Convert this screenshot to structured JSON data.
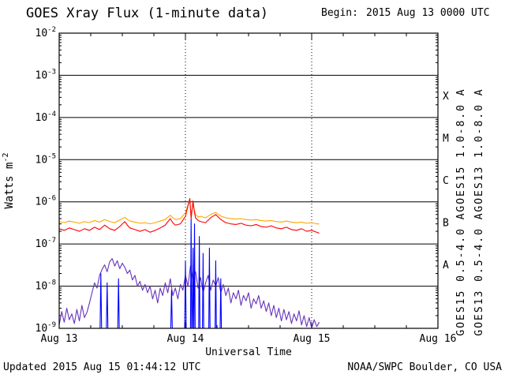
{
  "header": {
    "title": "GOES Xray Flux (1-minute data)",
    "begin_label": "Begin:",
    "begin_value": "2015 Aug 13 0000 UTC"
  },
  "footer": {
    "updated": "Updated 2015 Aug 15 01:44:12 UTC",
    "credit": "NOAA/SWPC Boulder, CO USA"
  },
  "colors": {
    "goes15_long": "#ff0000",
    "goes13_long": "#ffa500",
    "goes15_short": "#0000ff",
    "goes13_short": "#6633bb",
    "grid": "#000000",
    "text": "#000000"
  },
  "legend": [
    {
      "text": "GOES15 1.0-8.0 A",
      "color": "#ff0000",
      "column": 0,
      "half": "top"
    },
    {
      "text": "GOES13 1.0-8.0 A",
      "color": "#ffa500",
      "column": 1,
      "half": "top"
    },
    {
      "text": "GOES15 0.5-4.0 A",
      "color": "#0000ff",
      "column": 0,
      "half": "bottom"
    },
    {
      "text": "GOES13 0.5-4.0 A",
      "color": "#6633bb",
      "column": 1,
      "half": "bottom"
    }
  ],
  "chart_data": {
    "type": "line",
    "title": "GOES Xray Flux (1-minute data)",
    "xlabel": "Universal Time",
    "ylabel": "Watts m^-2",
    "x_axis": {
      "start_label": "2015 Aug 13 0000 UTC",
      "tick_labels": [
        "Aug 13",
        "Aug 14",
        "Aug 15",
        "Aug 16"
      ],
      "tick_positions_days": [
        0,
        1,
        2,
        3
      ],
      "range_days": [
        0,
        3
      ],
      "minor_tick_step_days": 0.25
    },
    "y_axis": {
      "scale": "log",
      "range": [
        1e-09,
        0.01
      ],
      "tick_exponents": [
        -2,
        -3,
        -4,
        -5,
        -6,
        -7,
        -8,
        -9
      ]
    },
    "grid": {
      "horizontal_line_exponents": [
        -3,
        -4,
        -5,
        -6,
        -7,
        -8
      ],
      "vertical_dotted_days": [
        1,
        2
      ]
    },
    "flare_classes": [
      {
        "label": "X",
        "log_center": -3.5
      },
      {
        "label": "M",
        "log_center": -4.5
      },
      {
        "label": "C",
        "log_center": -5.5
      },
      {
        "label": "B",
        "log_center": -6.5
      },
      {
        "label": "A",
        "log_center": -7.5
      }
    ],
    "data_end_days": 2.06,
    "series": [
      {
        "name": "GOES13 0.5-4.0 A",
        "color": "#6633bb",
        "scale": 1e-09,
        "t_start": 0,
        "t_step": 0.02,
        "v": [
          1.2,
          2.5,
          1.4,
          3.0,
          1.6,
          2.2,
          1.3,
          2.8,
          1.5,
          3.5,
          1.8,
          2.4,
          4.0,
          7,
          12,
          9,
          18,
          25,
          32,
          22,
          38,
          45,
          30,
          40,
          26,
          35,
          28,
          20,
          24,
          14,
          18,
          10,
          13,
          8,
          11,
          7,
          10,
          5,
          8,
          4,
          9,
          6,
          12,
          7,
          15,
          6,
          9,
          5,
          11,
          8,
          18,
          10,
          30,
          14,
          22,
          9,
          16,
          7,
          12,
          18,
          8,
          14,
          10,
          16,
          7,
          11,
          6,
          9,
          4,
          7,
          5,
          8,
          3.5,
          6,
          4.5,
          7,
          3,
          5,
          3.8,
          6,
          3,
          4.5,
          2.5,
          4,
          2,
          3.5,
          1.8,
          3,
          1.5,
          2.8,
          1.6,
          2.5,
          1.3,
          2.2,
          1.5,
          2.6,
          1.2,
          2.0,
          1.1,
          1.8,
          1.0,
          1.6,
          1.1,
          1.4
        ]
      },
      {
        "name": "GOES15 0.5-4.0 A",
        "color": "#0000ff",
        "scale": 1e-09,
        "t": [
          0.0,
          0.324,
          0.33,
          0.336,
          0.374,
          0.38,
          0.386,
          0.464,
          0.47,
          0.476,
          0.884,
          0.89,
          0.896,
          0.994,
          1.0,
          1.006,
          1.04,
          1.045,
          1.05,
          1.055,
          1.06,
          1.065,
          1.067,
          1.072,
          1.077,
          1.105,
          1.11,
          1.115,
          1.135,
          1.14,
          1.145,
          1.185,
          1.19,
          1.195,
          1.235,
          1.24,
          1.245,
          1.275,
          1.28,
          1.285,
          1.35,
          2.06
        ],
        "v": [
          0.9,
          0.9,
          20,
          0.9,
          0.9,
          12,
          0.9,
          0.9,
          15,
          0.9,
          0.9,
          8,
          0.9,
          0.9,
          40,
          0.9,
          0.9,
          400,
          0.9,
          0.9,
          80,
          0.9,
          0.9,
          300,
          0.9,
          0.9,
          150,
          0.9,
          0.9,
          60,
          0.9,
          0.9,
          80,
          0.9,
          0.9,
          40,
          0.9,
          0.9,
          15,
          0.9,
          0.9,
          0.9
        ]
      },
      {
        "name": "GOES13 1.0-8.0 A",
        "color": "#ffa500",
        "scale": 1e-07,
        "t": [
          0,
          0.04,
          0.08,
          0.12,
          0.16,
          0.2,
          0.24,
          0.28,
          0.32,
          0.36,
          0.4,
          0.44,
          0.48,
          0.52,
          0.54,
          0.56,
          0.6,
          0.64,
          0.68,
          0.72,
          0.76,
          0.8,
          0.84,
          0.88,
          0.9,
          0.92,
          0.96,
          1.0,
          1.02,
          1.035,
          1.045,
          1.05,
          1.06,
          1.07,
          1.08,
          1.1,
          1.12,
          1.16,
          1.2,
          1.24,
          1.28,
          1.32,
          1.36,
          1.4,
          1.44,
          1.48,
          1.52,
          1.56,
          1.6,
          1.64,
          1.68,
          1.72,
          1.76,
          1.8,
          1.84,
          1.88,
          1.92,
          1.96,
          2.0,
          2.04,
          2.06
        ],
        "v": [
          3.4,
          3.2,
          3.5,
          3.3,
          3.1,
          3.4,
          3.2,
          3.6,
          3.3,
          3.8,
          3.4,
          3.2,
          3.7,
          4.3,
          3.8,
          3.5,
          3.3,
          3.1,
          3.2,
          3.0,
          3.2,
          3.5,
          3.8,
          4.8,
          4.2,
          3.8,
          4.0,
          5.5,
          8.5,
          10.0,
          5.0,
          6.0,
          9.0,
          6.5,
          5.0,
          4.4,
          4.5,
          4.2,
          5.0,
          5.6,
          4.6,
          4.2,
          4.0,
          3.9,
          4.0,
          3.8,
          3.7,
          3.8,
          3.6,
          3.5,
          3.6,
          3.4,
          3.3,
          3.5,
          3.3,
          3.2,
          3.3,
          3.1,
          3.2,
          3.0,
          3.0
        ]
      },
      {
        "name": "GOES15 1.0-8.0 A",
        "color": "#ff0000",
        "scale": 1e-07,
        "t": [
          0,
          0.04,
          0.08,
          0.12,
          0.16,
          0.2,
          0.24,
          0.28,
          0.32,
          0.36,
          0.4,
          0.44,
          0.48,
          0.52,
          0.54,
          0.56,
          0.6,
          0.64,
          0.68,
          0.72,
          0.76,
          0.8,
          0.84,
          0.88,
          0.9,
          0.92,
          0.96,
          1.0,
          1.02,
          1.035,
          1.045,
          1.05,
          1.06,
          1.07,
          1.08,
          1.1,
          1.12,
          1.16,
          1.2,
          1.24,
          1.28,
          1.32,
          1.36,
          1.4,
          1.44,
          1.48,
          1.52,
          1.56,
          1.6,
          1.64,
          1.68,
          1.72,
          1.76,
          1.8,
          1.84,
          1.88,
          1.92,
          1.96,
          2.0,
          2.04,
          2.06
        ],
        "v": [
          2.3,
          2.1,
          2.4,
          2.2,
          2.0,
          2.3,
          2.1,
          2.5,
          2.2,
          2.8,
          2.3,
          2.1,
          2.6,
          3.4,
          2.8,
          2.4,
          2.2,
          2.0,
          2.2,
          1.9,
          2.1,
          2.4,
          2.8,
          4.0,
          3.2,
          2.8,
          3.0,
          4.5,
          8.0,
          12.0,
          4.0,
          5.5,
          10.5,
          6.0,
          4.2,
          3.6,
          3.4,
          3.2,
          4.2,
          5.0,
          3.8,
          3.2,
          3.0,
          2.9,
          3.1,
          2.8,
          2.7,
          2.9,
          2.6,
          2.5,
          2.7,
          2.4,
          2.3,
          2.5,
          2.2,
          2.1,
          2.3,
          2.0,
          2.1,
          1.9,
          1.8
        ]
      }
    ]
  }
}
